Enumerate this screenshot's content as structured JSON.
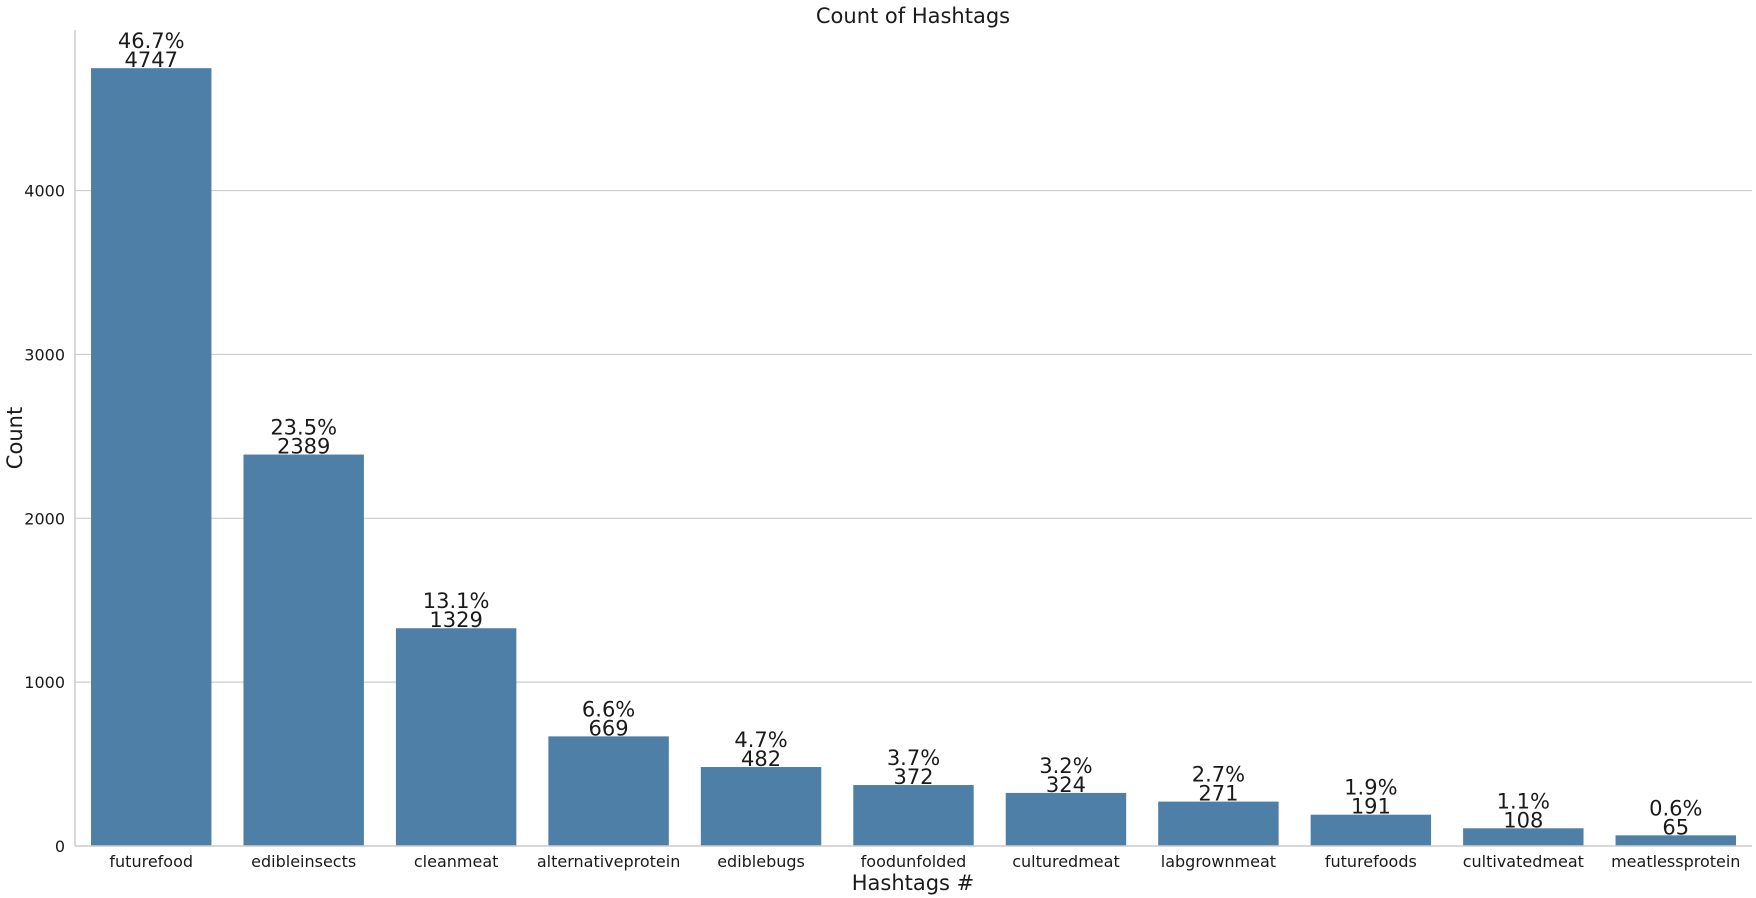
{
  "chart_data": {
    "type": "bar",
    "title": "Count of Hashtags",
    "xlabel": "Hashtags #",
    "ylabel": "Count",
    "categories": [
      "futurefood",
      "edibleinsects",
      "cleanmeat",
      "alternativeprotein",
      "ediblebugs",
      "foodunfolded",
      "culturedmeat",
      "labgrownmeat",
      "futurefoods",
      "cultivatedmeat",
      "meatlessprotein"
    ],
    "values": [
      4747,
      2389,
      1329,
      669,
      482,
      372,
      324,
      271,
      191,
      108,
      65
    ],
    "percent_labels": [
      "46.7%",
      "23.5%",
      "13.1%",
      "6.6%",
      "4.7%",
      "3.7%",
      "3.2%",
      "2.7%",
      "1.9%",
      "1.1%",
      "0.6%"
    ],
    "ylim": [
      0,
      4980
    ],
    "yticks": [
      0,
      1000,
      2000,
      3000,
      4000
    ],
    "grid": "horizontal",
    "bar_color": "#4e7fa7"
  }
}
